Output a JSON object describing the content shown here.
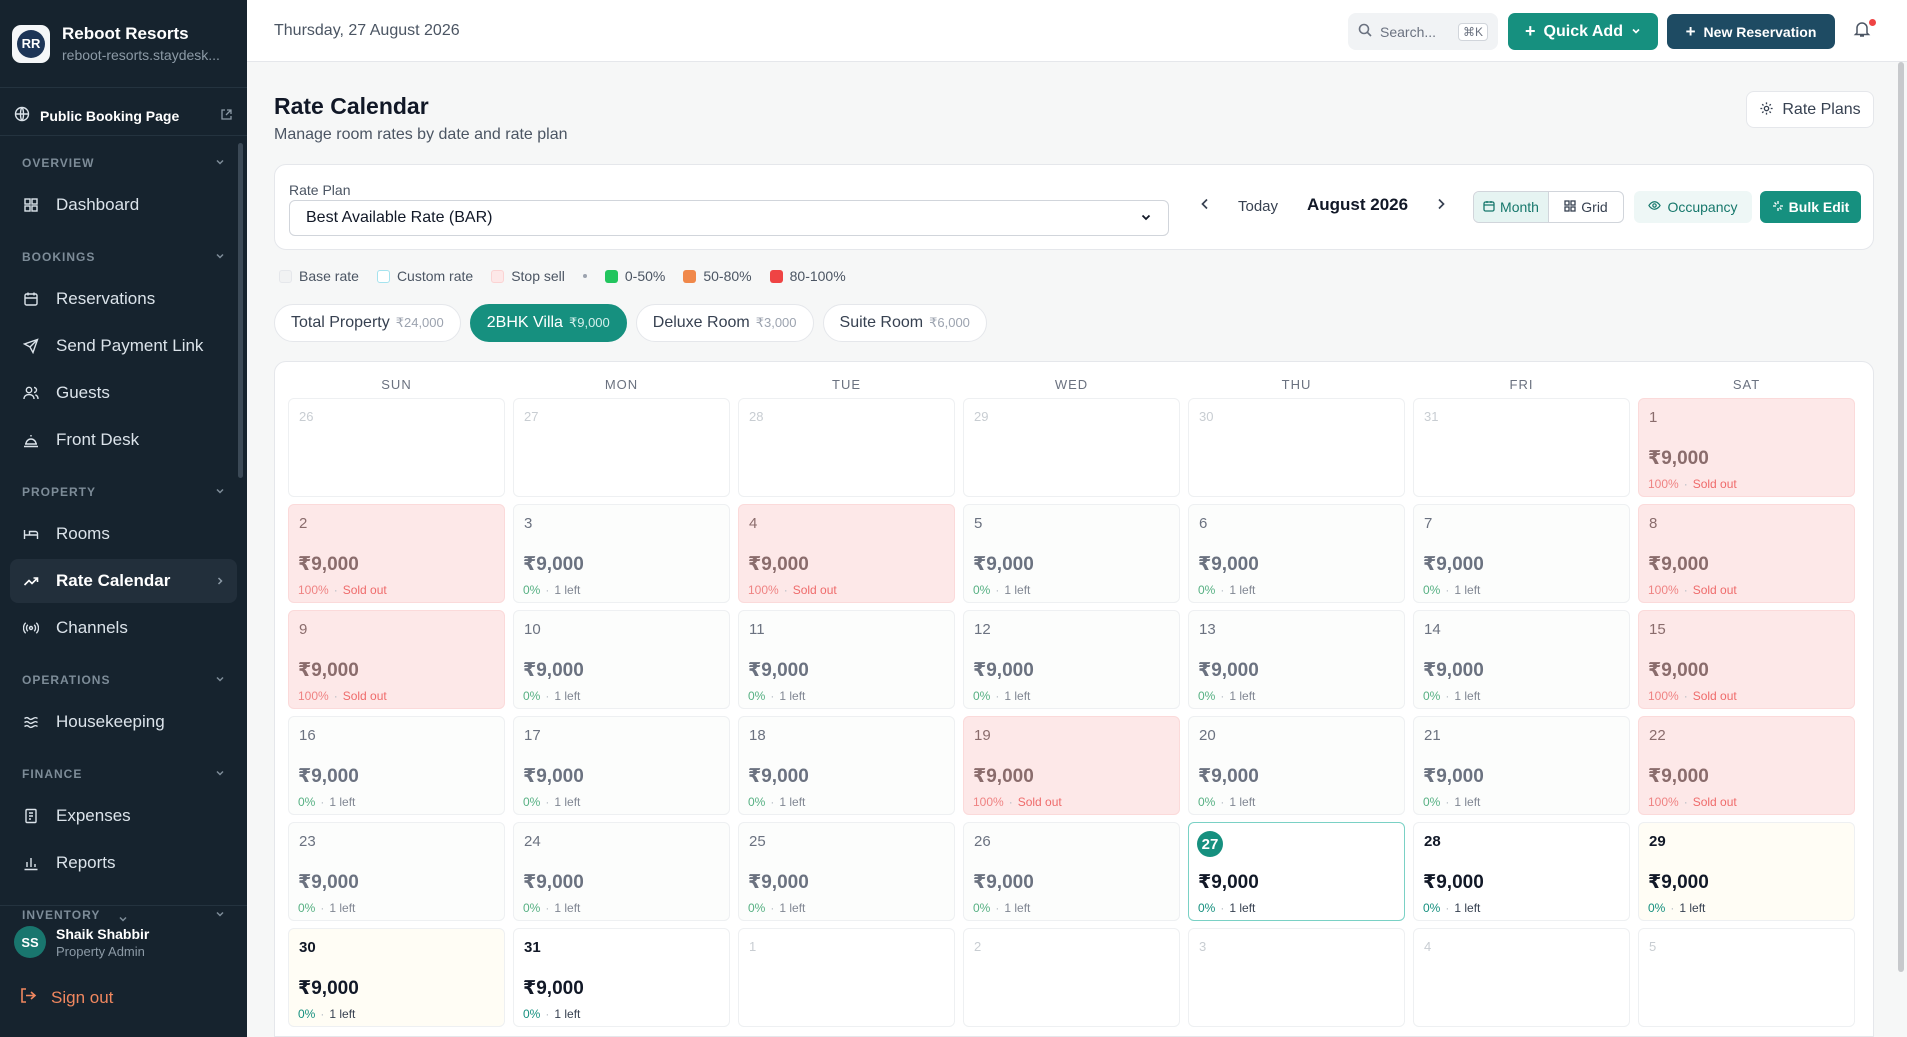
{
  "brand": {
    "name": "Reboot Resorts",
    "subdomain": "reboot-resorts.staydesk...",
    "logo_text": "RR"
  },
  "public_link": {
    "label": "Public Booking Page"
  },
  "sidebar": {
    "sections": [
      {
        "label": "OVERVIEW",
        "items": [
          {
            "label": "Dashboard",
            "icon": "grid-icon"
          }
        ]
      },
      {
        "label": "BOOKINGS",
        "items": [
          {
            "label": "Reservations",
            "icon": "calendar-icon"
          },
          {
            "label": "Send Payment Link",
            "icon": "send-icon"
          },
          {
            "label": "Guests",
            "icon": "users-icon"
          },
          {
            "label": "Front Desk",
            "icon": "bell-desk-icon"
          }
        ]
      },
      {
        "label": "PROPERTY",
        "items": [
          {
            "label": "Rooms",
            "icon": "bed-icon"
          },
          {
            "label": "Rate Calendar",
            "icon": "trend-icon",
            "active": true
          },
          {
            "label": "Channels",
            "icon": "radio-icon"
          }
        ]
      },
      {
        "label": "OPERATIONS",
        "items": [
          {
            "label": "Housekeeping",
            "icon": "waves-icon"
          }
        ]
      },
      {
        "label": "FINANCE",
        "items": [
          {
            "label": "Expenses",
            "icon": "receipt-icon"
          },
          {
            "label": "Reports",
            "icon": "bar-chart-icon"
          }
        ]
      },
      {
        "label": "INVENTORY",
        "items": []
      }
    ]
  },
  "user": {
    "initials": "SS",
    "name": "Shaik Shabbir",
    "role": "Property Admin",
    "signout": "Sign out"
  },
  "header": {
    "date": "Thursday, 27 August 2026",
    "search_placeholder": "Search...",
    "search_kbd": "⌘K",
    "quick_add": "Quick Add",
    "new_reservation": "New Reservation"
  },
  "page": {
    "title": "Rate Calendar",
    "subtitle": "Manage room rates by date and rate plan",
    "rate_plans_button": "Rate Plans"
  },
  "controls": {
    "rate_plan_label": "Rate Plan",
    "rate_plan_value": "Best Available Rate (BAR)",
    "today": "Today",
    "month": "August 2026",
    "view_month": "Month",
    "view_grid": "Grid",
    "occupancy": "Occupancy",
    "bulk_edit": "Bulk Edit"
  },
  "legend": {
    "base": "Base rate",
    "custom": "Custom rate",
    "stop": "Stop sell",
    "low": "0-50%",
    "mid": "50-80%",
    "high": "80-100%",
    "colors": {
      "base": "#f1f2f3",
      "custom": "#e6f6fb",
      "stop": "#fde8e8",
      "low": "#22c55e",
      "mid": "#f0884a",
      "high": "#ef4444"
    }
  },
  "room_chips": [
    {
      "label": "Total Property",
      "price": "₹24,000"
    },
    {
      "label": "2BHK Villa",
      "price": "₹9,000",
      "selected": true
    },
    {
      "label": "Deluxe Room",
      "price": "₹3,000"
    },
    {
      "label": "Suite Room",
      "price": "₹6,000"
    }
  ],
  "calendar": {
    "weekdays": [
      "SUN",
      "MON",
      "TUE",
      "WED",
      "THU",
      "FRI",
      "SAT"
    ],
    "default_rate": "₹9,000",
    "sold_label": "Sold out",
    "avail_label": "1 left",
    "leading_days": [
      "26",
      "27",
      "28",
      "29",
      "30",
      "31"
    ],
    "trailing_days": [
      "1",
      "2",
      "3",
      "4",
      "5"
    ],
    "days": [
      {
        "d": "1",
        "sold": true
      },
      {
        "d": "2",
        "sold": true
      },
      {
        "d": "3"
      },
      {
        "d": "4",
        "sold": true
      },
      {
        "d": "5"
      },
      {
        "d": "6"
      },
      {
        "d": "7"
      },
      {
        "d": "8",
        "sold": true
      },
      {
        "d": "9",
        "sold": true
      },
      {
        "d": "10"
      },
      {
        "d": "11"
      },
      {
        "d": "12"
      },
      {
        "d": "13"
      },
      {
        "d": "14"
      },
      {
        "d": "15",
        "sold": true
      },
      {
        "d": "16"
      },
      {
        "d": "17"
      },
      {
        "d": "18"
      },
      {
        "d": "19",
        "sold": true
      },
      {
        "d": "20"
      },
      {
        "d": "21"
      },
      {
        "d": "22",
        "sold": true
      },
      {
        "d": "23"
      },
      {
        "d": "24"
      },
      {
        "d": "25"
      },
      {
        "d": "26"
      },
      {
        "d": "27",
        "today": true,
        "strong": true
      },
      {
        "d": "28",
        "strong": true
      },
      {
        "d": "29",
        "strong": true,
        "warm": true
      },
      {
        "d": "30",
        "strong": true,
        "warm": true
      },
      {
        "d": "31",
        "strong": true
      }
    ]
  }
}
